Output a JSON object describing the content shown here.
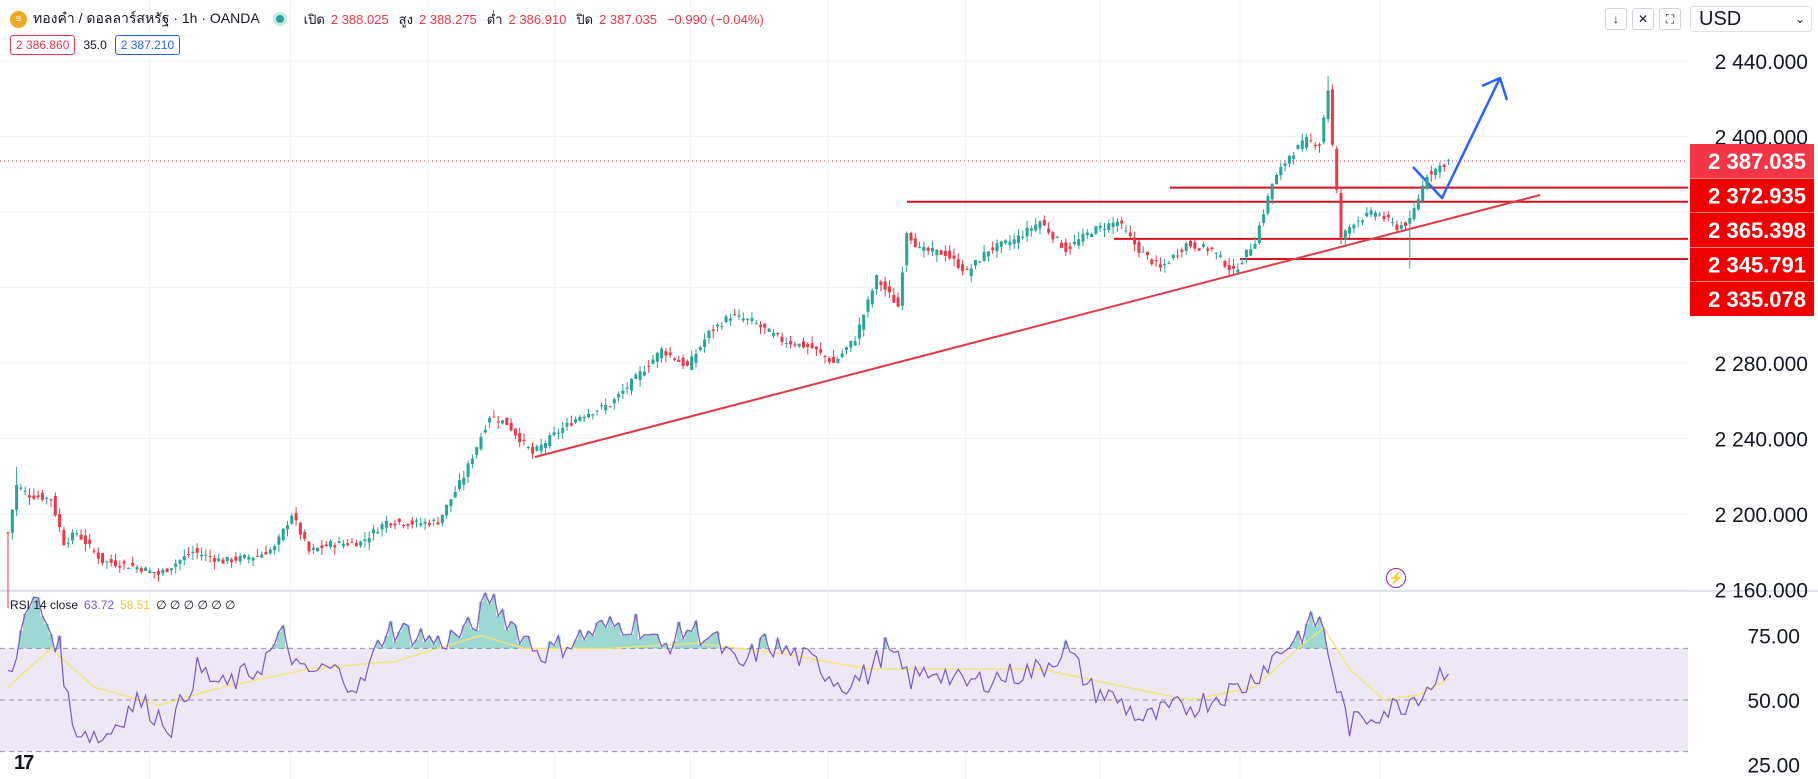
{
  "header": {
    "symbol_title": "ทองคำ / ดอลลาร์สหรัฐ · 1h · OANDA",
    "open_label": "เปิด",
    "open_value": "2 388.025",
    "high_label": "สูง",
    "high_value": "2 388.275",
    "low_label": "ต่ำ",
    "low_value": "2 386.910",
    "close_label": "ปิด",
    "close_value": "2 387.035",
    "change": "−0.990 (−0.04%)",
    "bid": "2 386.860",
    "spread": "35.0",
    "ask": "2 387.210"
  },
  "controls": {
    "currency": "USD",
    "buttons": [
      "arrow-down-icon",
      "collapse-icon",
      "fullscreen-icon"
    ]
  },
  "rsi_legend": {
    "name": "RSI 14 close",
    "value": "63.72",
    "ma_value": "58.51",
    "empty_values": "∅ ∅ ∅ ∅ ∅ ∅"
  },
  "colors": {
    "up": "#26a69a",
    "down": "#f23645",
    "level": "#d6111b",
    "trend": "#e03a48",
    "arrow": "#2962ff",
    "rsi": "#7e57c2",
    "rsi_ma": "#f5e663",
    "rsi_band": "#ede7f6"
  },
  "chart_data": [
    {
      "type": "candlestick",
      "title": "",
      "xlabel": "",
      "ylabel": "",
      "ylim": [
        2160,
        2440
      ],
      "y_ticks": [
        "2 160.000",
        "2 200.000",
        "2 240.000",
        "2 280.000",
        "2 400.000",
        "2 440.000"
      ],
      "current_price": "2 387.035",
      "price_levels": [
        "2 372.935",
        "2 365.398",
        "2 345.791",
        "2 335.078"
      ],
      "grid": true,
      "waypoints": [
        [
          0,
          2190
        ],
        [
          2,
          2215
        ],
        [
          5,
          2210
        ],
        [
          10,
          2208
        ],
        [
          13,
          2185
        ],
        [
          16,
          2190
        ],
        [
          22,
          2175
        ],
        [
          30,
          2172
        ],
        [
          35,
          2168
        ],
        [
          43,
          2180
        ],
        [
          50,
          2175
        ],
        [
          58,
          2178
        ],
        [
          62,
          2182
        ],
        [
          66,
          2200
        ],
        [
          70,
          2180
        ],
        [
          75,
          2184
        ],
        [
          82,
          2185
        ],
        [
          88,
          2196
        ],
        [
          95,
          2195
        ],
        [
          100,
          2196
        ],
        [
          106,
          2220
        ],
        [
          112,
          2252
        ],
        [
          116,
          2248
        ],
        [
          122,
          2232
        ],
        [
          127,
          2242
        ],
        [
          133,
          2252
        ],
        [
          140,
          2258
        ],
        [
          146,
          2272
        ],
        [
          152,
          2287
        ],
        [
          158,
          2278
        ],
        [
          163,
          2296
        ],
        [
          168,
          2305
        ],
        [
          173,
          2302
        ],
        [
          180,
          2292
        ],
        [
          187,
          2288
        ],
        [
          192,
          2280
        ],
        [
          197,
          2293
        ],
        [
          202,
          2325
        ],
        [
          207,
          2310
        ],
        [
          209,
          2350
        ],
        [
          212,
          2340
        ],
        [
          218,
          2338
        ],
        [
          223,
          2328
        ],
        [
          228,
          2340
        ],
        [
          234,
          2345
        ],
        [
          240,
          2355
        ],
        [
          246,
          2340
        ],
        [
          252,
          2350
        ],
        [
          258,
          2355
        ],
        [
          263,
          2340
        ],
        [
          268,
          2330
        ],
        [
          274,
          2343
        ],
        [
          280,
          2340
        ],
        [
          285,
          2328
        ],
        [
          290,
          2345
        ],
        [
          294,
          2375
        ],
        [
          298,
          2390
        ],
        [
          302,
          2398
        ],
        [
          305,
          2396
        ],
        [
          307,
          2425
        ],
        [
          308,
          2395
        ],
        [
          310,
          2346
        ],
        [
          313,
          2355
        ],
        [
          318,
          2360
        ],
        [
          323,
          2352
        ],
        [
          326,
          2355
        ],
        [
          330,
          2380
        ],
        [
          335,
          2387
        ]
      ]
    },
    {
      "type": "line",
      "title": "",
      "xlabel": "",
      "ylabel": "",
      "ylim": [
        25,
        100
      ],
      "y_ticks": [
        "75.00",
        "50.00",
        "25.00"
      ],
      "band": [
        30,
        70
      ],
      "midline": 50,
      "series": [
        {
          "waypoints": [
            [
              0,
              60
            ],
            [
              6,
              90
            ],
            [
              12,
              70
            ],
            [
              15,
              40
            ],
            [
              22,
              35
            ],
            [
              30,
              50
            ],
            [
              38,
              40
            ],
            [
              44,
              62
            ],
            [
              50,
              55
            ],
            [
              58,
              62
            ],
            [
              64,
              75
            ],
            [
              68,
              60
            ],
            [
              75,
              62
            ],
            [
              82,
              55
            ],
            [
              88,
              78
            ],
            [
              96,
              75
            ],
            [
              100,
              72
            ],
            [
              108,
              78
            ],
            [
              112,
              90
            ],
            [
              118,
              78
            ],
            [
              124,
              68
            ],
            [
              130,
              72
            ],
            [
              138,
              78
            ],
            [
              146,
              80
            ],
            [
              152,
              70
            ],
            [
              158,
              78
            ],
            [
              164,
              74
            ],
            [
              170,
              62
            ],
            [
              176,
              72
            ],
            [
              182,
              68
            ],
            [
              188,
              64
            ],
            [
              194,
              56
            ],
            [
              200,
              60
            ],
            [
              204,
              70
            ],
            [
              210,
              58
            ],
            [
              216,
              62
            ],
            [
              222,
              56
            ],
            [
              228,
              58
            ],
            [
              234,
              60
            ],
            [
              240,
              62
            ],
            [
              246,
              70
            ],
            [
              252,
              54
            ],
            [
              258,
              50
            ],
            [
              264,
              42
            ],
            [
              270,
              46
            ],
            [
              276,
              48
            ],
            [
              282,
              52
            ],
            [
              288,
              56
            ],
            [
              294,
              66
            ],
            [
              300,
              75
            ],
            [
              305,
              82
            ],
            [
              309,
              55
            ],
            [
              312,
              40
            ],
            [
              318,
              45
            ],
            [
              324,
              48
            ],
            [
              330,
              55
            ],
            [
              335,
              64
            ]
          ]
        },
        {
          "waypoints": [
            [
              0,
              55
            ],
            [
              10,
              70
            ],
            [
              20,
              55
            ],
            [
              35,
              48
            ],
            [
              50,
              55
            ],
            [
              70,
              62
            ],
            [
              90,
              65
            ],
            [
              110,
              75
            ],
            [
              120,
              70
            ],
            [
              140,
              70
            ],
            [
              160,
              72
            ],
            [
              180,
              68
            ],
            [
              200,
              62
            ],
            [
              220,
              62
            ],
            [
              240,
              62
            ],
            [
              260,
              55
            ],
            [
              275,
              50
            ],
            [
              290,
              55
            ],
            [
              300,
              70
            ],
            [
              306,
              78
            ],
            [
              312,
              62
            ],
            [
              320,
              50
            ],
            [
              328,
              52
            ],
            [
              335,
              58
            ]
          ]
        }
      ]
    }
  ]
}
